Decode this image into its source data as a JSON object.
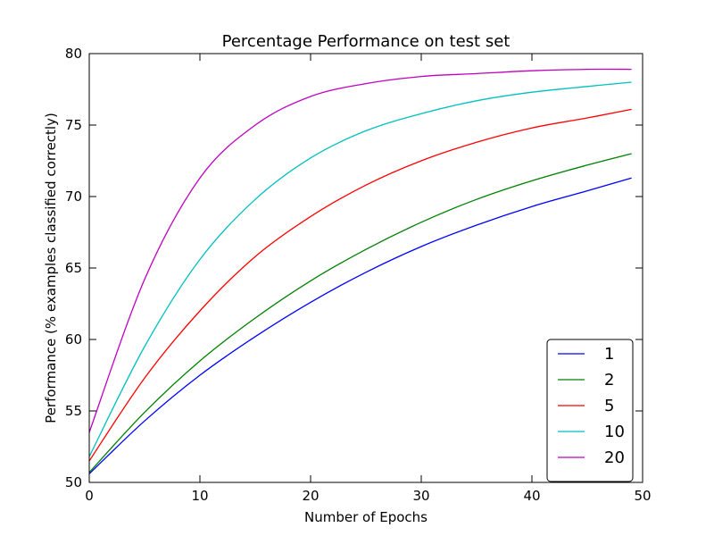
{
  "chart_data": {
    "type": "line",
    "title": "Percentage Performance on test set",
    "xlabel": "Number of Epochs",
    "ylabel": "Performance (% examples classified correctly)",
    "xlim": [
      0,
      50
    ],
    "ylim": [
      50,
      80
    ],
    "xticks": [
      0,
      10,
      20,
      30,
      40,
      50
    ],
    "yticks": [
      50,
      55,
      60,
      65,
      70,
      75,
      80
    ],
    "grid": false,
    "legend_position": "lower-right",
    "x": [
      0,
      5,
      10,
      15,
      20,
      25,
      30,
      35,
      40,
      45,
      49
    ],
    "series": [
      {
        "name": "1",
        "color": "#0000ff",
        "values": [
          50.6,
          54.3,
          57.5,
          60.2,
          62.6,
          64.7,
          66.5,
          68.0,
          69.3,
          70.4,
          71.3
        ]
      },
      {
        "name": "2",
        "color": "#008000",
        "values": [
          50.7,
          54.9,
          58.5,
          61.5,
          64.1,
          66.3,
          68.2,
          69.8,
          71.1,
          72.2,
          73.0
        ]
      },
      {
        "name": "5",
        "color": "#ff0000",
        "values": [
          51.5,
          57.3,
          62.0,
          65.8,
          68.6,
          70.8,
          72.5,
          73.8,
          74.8,
          75.5,
          76.1
        ]
      },
      {
        "name": "10",
        "color": "#00bfbf",
        "values": [
          51.8,
          59.5,
          65.6,
          69.8,
          72.7,
          74.6,
          75.8,
          76.7,
          77.3,
          77.7,
          78.0
        ]
      },
      {
        "name": "20",
        "color": "#bf00bf",
        "values": [
          53.5,
          64.2,
          71.3,
          75.0,
          77.0,
          77.9,
          78.4,
          78.6,
          78.8,
          78.9,
          78.9
        ]
      }
    ]
  }
}
